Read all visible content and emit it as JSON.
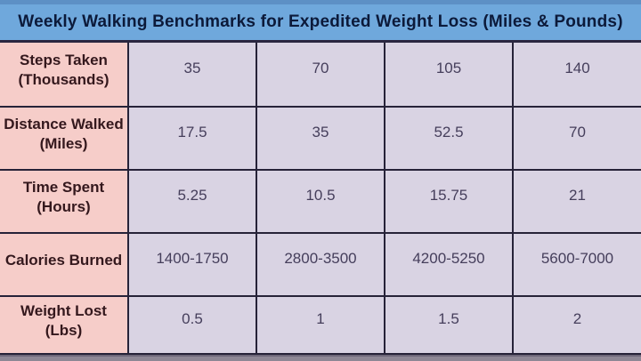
{
  "title": "Weekly Walking Benchmarks for Expedited Weight Loss (Miles & Pounds)",
  "colors": {
    "title_bg": "#6fa8dc",
    "title_text": "#0c1a3a",
    "header_cell_bg": "#f6cdc9",
    "header_cell_text": "#34181d",
    "data_cell_bg": "#d9d3e3",
    "data_cell_text": "#453e5b",
    "grid_border": "#262238",
    "top_strip": "#5d90c5",
    "bottom_strip": "#8e8795"
  },
  "chart_data": {
    "type": "table",
    "title": "Weekly Walking Benchmarks for Expedited Weight Loss (Miles & Pounds)",
    "rows": [
      {
        "header": "Steps Taken (Thousands)",
        "values": [
          "35",
          "70",
          "105",
          "140"
        ]
      },
      {
        "header": "Distance Walked (Miles)",
        "values": [
          "17.5",
          "35",
          "52.5",
          "70"
        ]
      },
      {
        "header": "Time Spent (Hours)",
        "values": [
          "5.25",
          "10.5",
          "15.75",
          "21"
        ]
      },
      {
        "header": "Calories Burned",
        "values": [
          "1400-1750",
          "2800-3500",
          "4200-5250",
          "5600-7000"
        ]
      },
      {
        "header": "Weight Lost (Lbs)",
        "values": [
          "0.5",
          "1",
          "1.5",
          "2"
        ]
      }
    ]
  }
}
